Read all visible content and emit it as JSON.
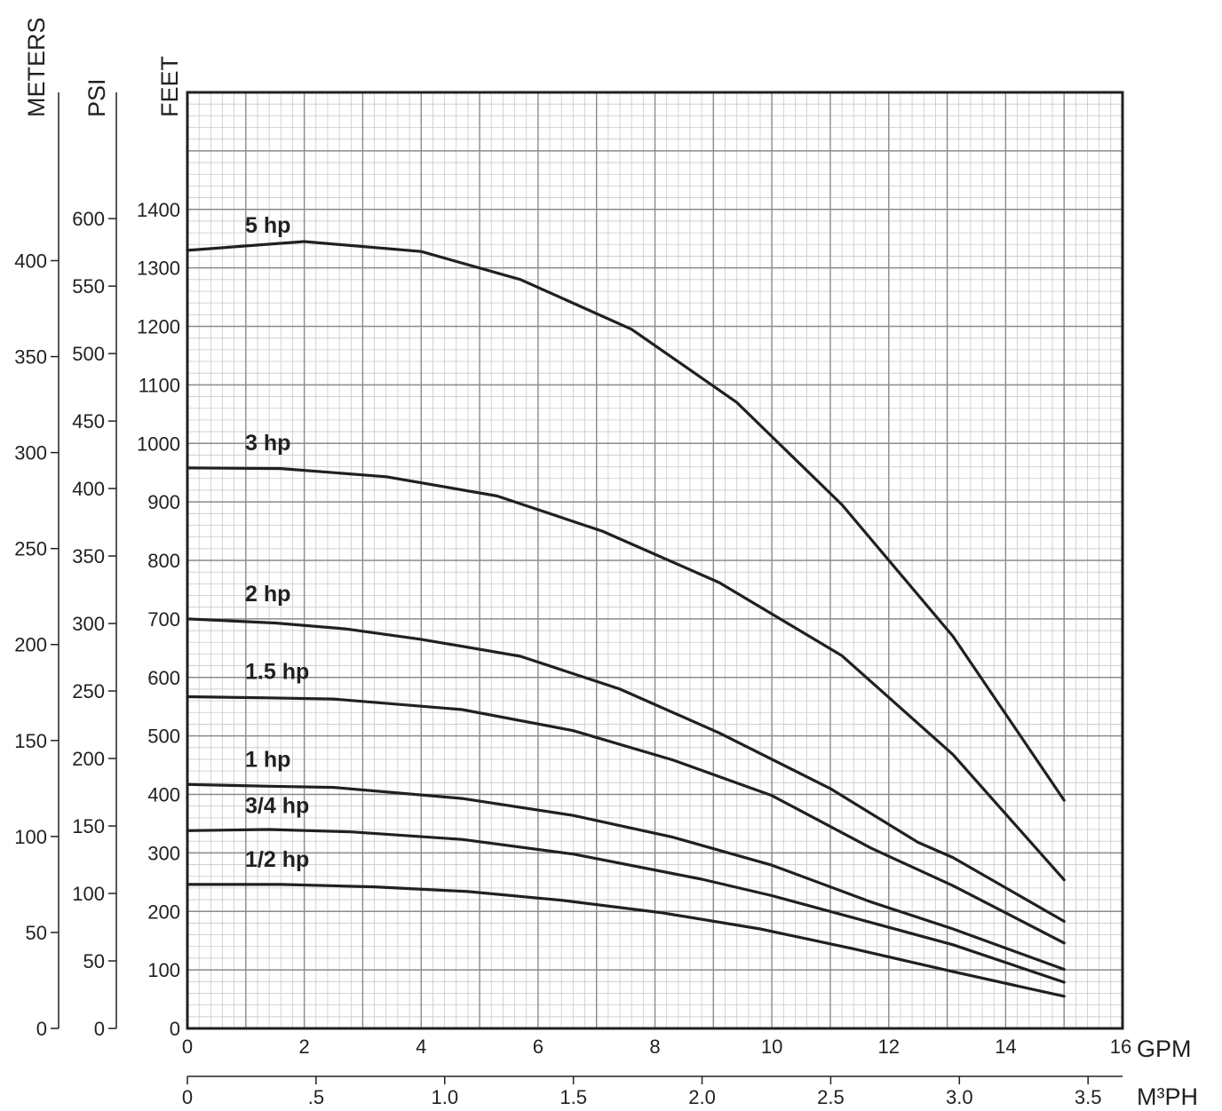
{
  "chart_data": {
    "type": "line",
    "title": "",
    "grid": true,
    "x_axis": {
      "label": "GPM",
      "range": [
        0,
        16
      ],
      "ticks": [
        0,
        2,
        4,
        6,
        8,
        10,
        12,
        14,
        16
      ],
      "tick_labels": [
        "0",
        "2",
        "4",
        "6",
        "8",
        "10",
        "12",
        "14",
        "16"
      ]
    },
    "x2_axis": {
      "label": "M³PH",
      "ticks": [
        0,
        0.5,
        1.0,
        1.5,
        2.0,
        2.5,
        3.0,
        3.5
      ],
      "tick_labels": [
        "0",
        ".5",
        "1.0",
        "1.5",
        "2.0",
        "2.5",
        "3.0",
        "3.5"
      ]
    },
    "y_axis": {
      "label": "FEET",
      "range": [
        0,
        1600
      ],
      "ticks": [
        0,
        100,
        200,
        300,
        400,
        500,
        600,
        700,
        800,
        900,
        1000,
        1100,
        1200,
        1300,
        1400
      ],
      "tick_labels": [
        "0",
        "100",
        "200",
        "300",
        "400",
        "500",
        "600",
        "700",
        "800",
        "900",
        "1000",
        "1100",
        "1200",
        "1300",
        "1400"
      ]
    },
    "y2_axis": {
      "label": "PSI",
      "ticks": [
        0,
        50,
        100,
        150,
        200,
        250,
        300,
        350,
        400,
        450,
        500,
        550,
        600
      ],
      "tick_labels": [
        "0",
        "50",
        "100",
        "150",
        "200",
        "250",
        "300",
        "350",
        "400",
        "450",
        "500",
        "550",
        "600"
      ]
    },
    "y3_axis": {
      "label": "METERS",
      "ticks": [
        0,
        50,
        100,
        150,
        200,
        250,
        300,
        350,
        400
      ],
      "tick_labels": [
        "0",
        "50",
        "100",
        "150",
        "200",
        "250",
        "300",
        "350",
        "400"
      ]
    },
    "series": [
      {
        "name": "5 hp",
        "x": [
          0,
          2,
          4,
          5.7,
          7.6,
          9.4,
          11.2,
          13.1,
          15
        ],
        "y": [
          1330,
          1345,
          1328,
          1280,
          1195,
          1070,
          895,
          670,
          390
        ]
      },
      {
        "name": "3 hp",
        "x": [
          0,
          1.6,
          3.4,
          5.3,
          7.1,
          9.1,
          11.2,
          13.1,
          15
        ],
        "y": [
          958,
          957,
          943,
          910,
          850,
          762,
          637,
          468,
          254
        ]
      },
      {
        "name": "2 hp",
        "x": [
          0,
          1.5,
          2.7,
          4,
          5.7,
          7.4,
          9.1,
          11,
          12.5,
          13.1,
          15
        ],
        "y": [
          700,
          693,
          683,
          665,
          636,
          580,
          505,
          410,
          318,
          292,
          183
        ]
      },
      {
        "name": "1.5 hp",
        "x": [
          0,
          1.4,
          2.5,
          4.7,
          6.6,
          8.3,
          10,
          11.7,
          13.1,
          15
        ],
        "y": [
          567,
          565,
          563,
          545,
          509,
          459,
          398,
          308,
          244,
          146
        ]
      },
      {
        "name": "1 hp",
        "x": [
          0,
          1.4,
          2.5,
          4.7,
          6.6,
          8.3,
          10,
          11.7,
          13.1,
          15
        ],
        "y": [
          417,
          414,
          412,
          393,
          364,
          327,
          279,
          216,
          170,
          101
        ]
      },
      {
        "name": "3/4 hp",
        "x": [
          0,
          1.4,
          2.8,
          4.7,
          6.6,
          8.8,
          10,
          11.7,
          13.1,
          15
        ],
        "y": [
          338,
          340,
          336,
          323,
          298,
          255,
          227,
          181,
          143,
          79
        ]
      },
      {
        "name": "1/2 hp",
        "x": [
          0,
          1.6,
          3.2,
          4.8,
          6.4,
          8.1,
          9.8,
          11.4,
          13.1,
          15
        ],
        "y": [
          246,
          246,
          242,
          234,
          219,
          198,
          170,
          136,
          97,
          55
        ]
      }
    ]
  }
}
